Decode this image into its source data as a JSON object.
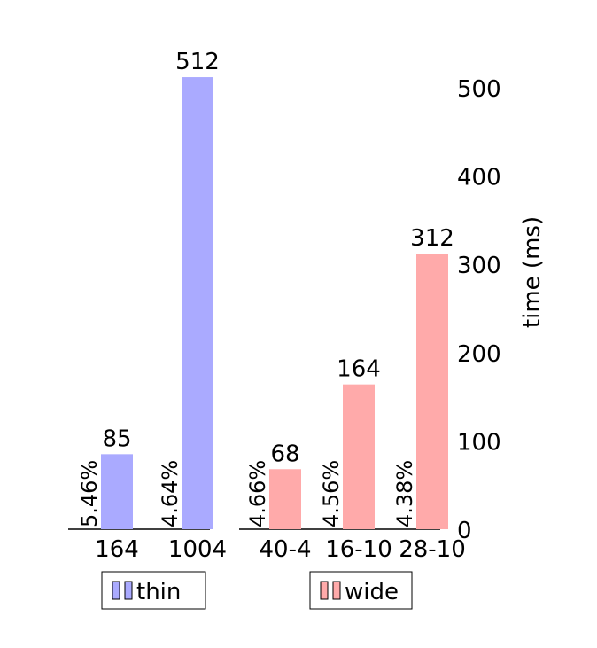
{
  "chart_data": {
    "type": "bar",
    "y_axis": {
      "label": "time (ms)",
      "ticks": [
        "0",
        "100",
        "200",
        "300",
        "400",
        "500"
      ],
      "ylim": [
        0,
        500
      ],
      "position": "right"
    },
    "groups": [
      {
        "legend_label": "thin",
        "color": "#aaaaff",
        "bars": [
          {
            "category": "164",
            "value": 85,
            "value_label": "85",
            "percent_label": "5.46%"
          },
          {
            "category": "1004",
            "value": 512,
            "value_label": "512",
            "percent_label": "4.64%"
          }
        ]
      },
      {
        "legend_label": "wide",
        "color": "#ffaaaa",
        "bars": [
          {
            "category": "40-4",
            "value": 68,
            "value_label": "68",
            "percent_label": "4.66%"
          },
          {
            "category": "16-10",
            "value": 164,
            "value_label": "164",
            "percent_label": "4.56%"
          },
          {
            "category": "28-10",
            "value": 312,
            "value_label": "312",
            "percent_label": "4.38%"
          }
        ]
      }
    ],
    "grid": false
  }
}
